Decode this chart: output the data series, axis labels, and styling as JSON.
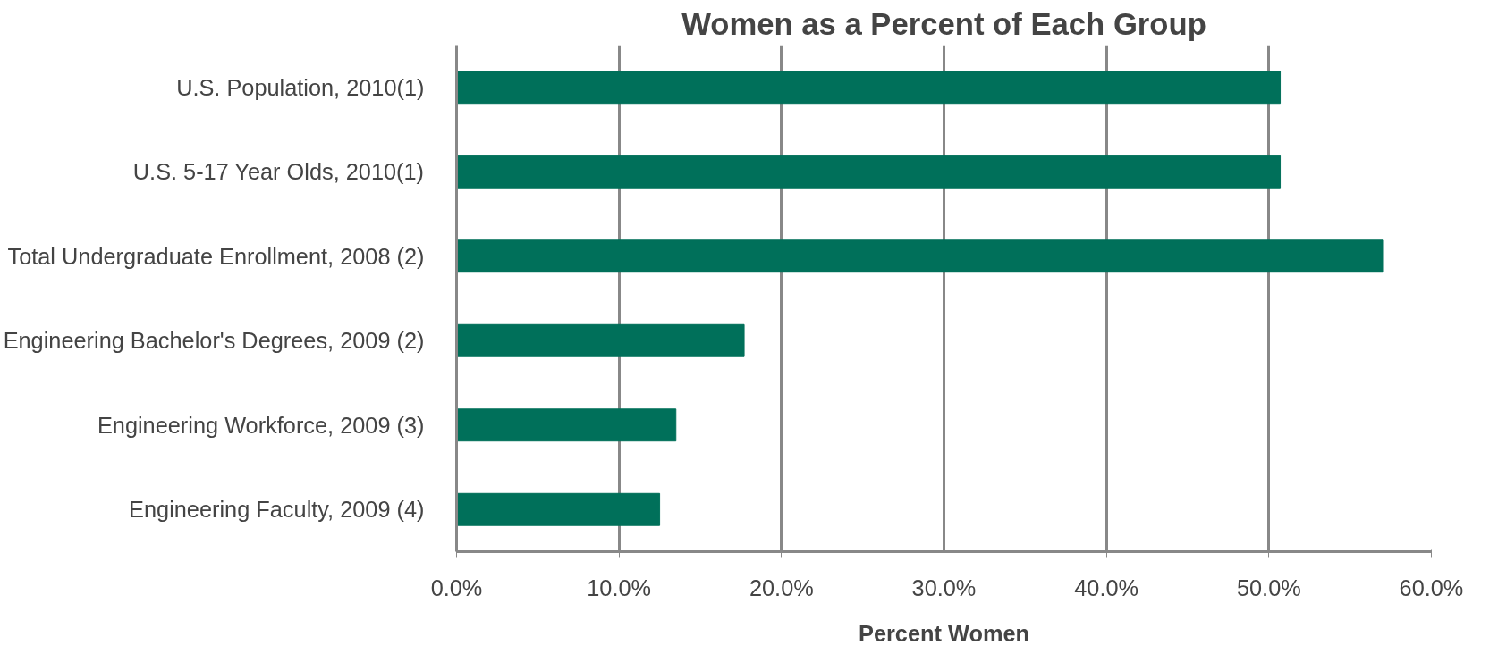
{
  "chart_data": {
    "type": "bar",
    "orientation": "horizontal",
    "title": "Women as a Percent of Each Group",
    "xlabel": "Percent Women",
    "categories": [
      "U.S. Population, 2010(1)",
      "U.S. 5-17 Year Olds, 2010(1)",
      "Total Undergraduate Enrollment, 2008 (2)",
      "Engineering Bachelor's Degrees, 2009 (2)",
      "Engineering Workforce, 2009 (3)",
      "Engineering Faculty, 2009 (4)"
    ],
    "values": [
      50.7,
      50.7,
      57.0,
      17.7,
      13.5,
      12.5
    ],
    "color": "#00705a",
    "xlim": [
      0,
      60
    ],
    "xticks": [
      {
        "value": 0,
        "label": "0.0%"
      },
      {
        "value": 10,
        "label": "10.0%"
      },
      {
        "value": 20,
        "label": "20.0%"
      },
      {
        "value": 30,
        "label": "30.0%"
      },
      {
        "value": 40,
        "label": "40.0%"
      },
      {
        "value": 50,
        "label": "50.0%"
      },
      {
        "value": 60,
        "label": "60.0%"
      }
    ],
    "grid": "x"
  }
}
